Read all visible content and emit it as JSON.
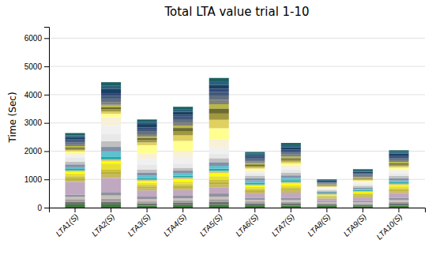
{
  "chart_data": {
    "type": "bar",
    "stacked": true,
    "title": "Total LTA value trial 1-10",
    "ylabel": "Time (Sec)",
    "categories": [
      "LTA1(S)",
      "LTA2(S)",
      "LTA3(S)",
      "LTA4(S)",
      "LTA5(S)",
      "LTA6(S)",
      "LTA7(S)",
      "LTA8(S)",
      "LTA9(S)",
      "LTA10(S)"
    ],
    "ylim": [
      0,
      6400
    ],
    "yticks": [
      0,
      1000,
      2000,
      3000,
      4000,
      5000,
      6000
    ],
    "grid": true,
    "series": [
      {
        "color": "#3a7a3a",
        "values": [
          110,
          110,
          70,
          90,
          100,
          80,
          70,
          60,
          50,
          70
        ]
      },
      {
        "color": "#707070",
        "values": [
          90,
          100,
          80,
          80,
          100,
          70,
          70,
          50,
          50,
          70
        ]
      },
      {
        "color": "#a0a0a0",
        "values": [
          100,
          100,
          70,
          90,
          100,
          70,
          70,
          50,
          50,
          70
        ]
      },
      {
        "color": "#c8c0b8",
        "values": [
          80,
          120,
          80,
          70,
          90,
          60,
          60,
          40,
          40,
          60
        ]
      },
      {
        "color": "#9090a0",
        "values": [
          80,
          120,
          90,
          90,
          110,
          70,
          80,
          40,
          50,
          70
        ]
      },
      {
        "color": "#c0a8c0",
        "values": [
          450,
          500,
          220,
          200,
          220,
          150,
          180,
          80,
          120,
          180
        ]
      },
      {
        "color": "#c8b860",
        "values": [
          70,
          130,
          70,
          80,
          100,
          60,
          70,
          30,
          40,
          60
        ]
      },
      {
        "color": "#b8b030",
        "values": [
          60,
          80,
          60,
          70,
          90,
          50,
          60,
          30,
          40,
          50
        ]
      },
      {
        "color": "#c8c040",
        "values": [
          70,
          100,
          60,
          60,
          80,
          50,
          60,
          30,
          40,
          50
        ]
      },
      {
        "color": "#e8e030",
        "values": [
          100,
          200,
          80,
          100,
          120,
          70,
          80,
          30,
          50,
          70
        ]
      },
      {
        "color": "#ffff00",
        "values": [
          60,
          80,
          60,
          80,
          110,
          50,
          60,
          20,
          30,
          50
        ]
      },
      {
        "color": "#d0c880",
        "values": [
          50,
          70,
          50,
          60,
          80,
          40,
          50,
          20,
          30,
          50
        ]
      },
      {
        "color": "#20a8a0",
        "values": [
          50,
          80,
          60,
          60,
          80,
          60,
          60,
          20,
          30,
          50
        ]
      },
      {
        "color": "#60c0d0",
        "values": [
          60,
          200,
          80,
          80,
          100,
          80,
          80,
          30,
          40,
          60
        ]
      },
      {
        "color": "#8090a8",
        "values": [
          100,
          160,
          100,
          100,
          130,
          80,
          90,
          40,
          50,
          80
        ]
      },
      {
        "color": "#c0c0c0",
        "values": [
          100,
          200,
          120,
          100,
          140,
          80,
          100,
          40,
          60,
          80
        ]
      },
      {
        "color": "#e8e8e8",
        "values": [
          130,
          250,
          160,
          150,
          160,
          80,
          100,
          40,
          60,
          100
        ]
      },
      {
        "color": "#f0f0f0",
        "values": [
          90,
          300,
          200,
          200,
          200,
          60,
          80,
          30,
          50,
          80
        ]
      },
      {
        "color": "#f8f0d8",
        "values": [
          80,
          300,
          200,
          250,
          300,
          60,
          70,
          30,
          40,
          60
        ]
      },
      {
        "color": "#ffff90",
        "values": [
          60,
          120,
          300,
          350,
          400,
          60,
          80,
          30,
          40,
          60
        ]
      },
      {
        "color": "#e0d060",
        "values": [
          50,
          80,
          100,
          200,
          300,
          50,
          60,
          20,
          30,
          50
        ]
      },
      {
        "color": "#a09840",
        "values": [
          40,
          80,
          80,
          150,
          220,
          50,
          60,
          20,
          30,
          50
        ]
      },
      {
        "color": "#6b6b30",
        "values": [
          50,
          80,
          70,
          110,
          180,
          50,
          60,
          20,
          30,
          50
        ]
      },
      {
        "color": "#b8b840",
        "values": [
          50,
          80,
          60,
          80,
          150,
          50,
          60,
          20,
          30,
          50
        ]
      },
      {
        "color": "#808080",
        "values": [
          60,
          100,
          80,
          120,
          160,
          60,
          70,
          30,
          40,
          60
        ]
      },
      {
        "color": "#607080",
        "values": [
          70,
          120,
          90,
          110,
          150,
          60,
          70,
          30,
          40,
          60
        ]
      },
      {
        "color": "#405878",
        "values": [
          60,
          100,
          80,
          90,
          130,
          50,
          60,
          20,
          30,
          50
        ]
      },
      {
        "color": "#304878",
        "values": [
          50,
          90,
          70,
          70,
          110,
          50,
          50,
          20,
          30,
          50
        ]
      },
      {
        "color": "#1a4060",
        "values": [
          80,
          160,
          120,
          100,
          140,
          60,
          80,
          30,
          50,
          70
        ]
      },
      {
        "color": "#286080",
        "values": [
          60,
          100,
          80,
          80,
          120,
          50,
          70,
          20,
          40,
          60
        ]
      },
      {
        "color": "#1a6060",
        "values": [
          80,
          130,
          80,
          100,
          120,
          60,
          80,
          30,
          50,
          60
        ]
      }
    ]
  }
}
